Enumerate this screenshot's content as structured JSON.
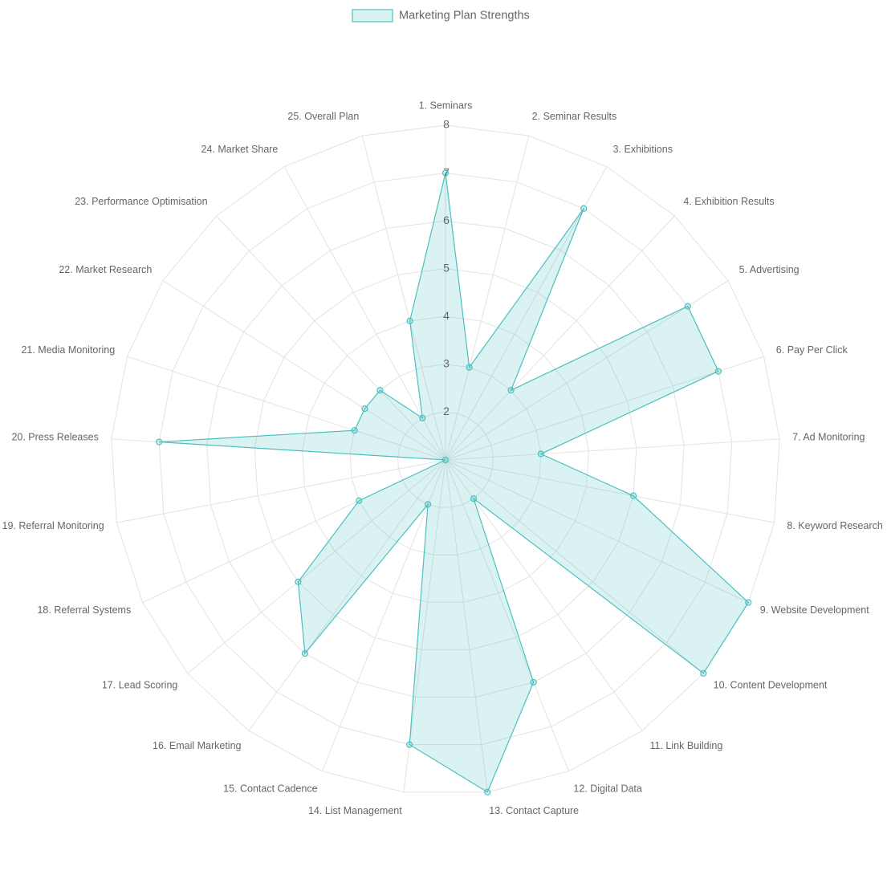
{
  "chart_data": {
    "type": "radar",
    "categories": [
      "1. Seminars",
      "2. Seminar Results",
      "3. Exhibitions",
      "4. Exhibition Results",
      "5. Advertising",
      "6. Pay Per Click",
      "7. Ad Monitoring",
      "8. Keyword Research",
      "9. Website Development",
      "10. Content Development",
      "11. Link Building",
      "12. Digital Data",
      "13. Contact Capture",
      "14. List Management",
      "15. Contact Cadence",
      "16. Email Marketing",
      "17. Lead Scoring",
      "18. Referral Systems",
      "19. Referral Monitoring",
      "20. Press Releases",
      "21. Media Monitoring",
      "22. Market Research",
      "23. Performance Optimisation",
      "24. Market Share",
      "25. Overall Plan"
    ],
    "series": [
      {
        "name": "Marketing Plan Strengths",
        "color": "#4bc0c0",
        "values": [
          7,
          3,
          7,
          3,
          7,
          7,
          3,
          5,
          8,
          8,
          2,
          6,
          8,
          7,
          2,
          6,
          5,
          3,
          1,
          7,
          3,
          3,
          3,
          2,
          4
        ]
      }
    ],
    "ylim": [
      1,
      8
    ],
    "yticks": [
      2,
      3,
      4,
      5,
      6,
      7,
      8
    ],
    "grid": true,
    "legend": "top"
  }
}
